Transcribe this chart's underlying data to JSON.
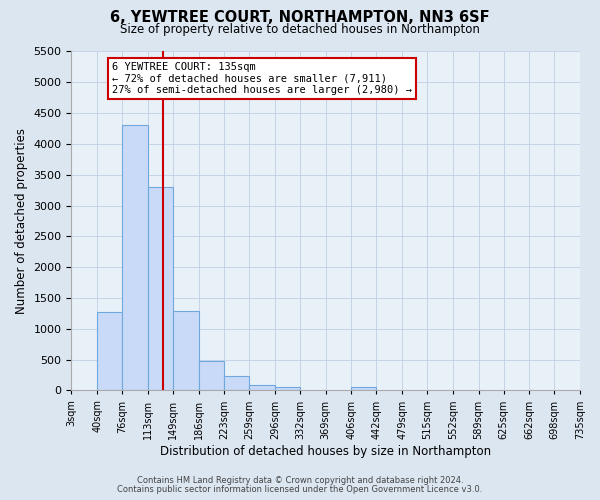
{
  "title": "6, YEWTREE COURT, NORTHAMPTON, NN3 6SF",
  "subtitle": "Size of property relative to detached houses in Northampton",
  "xlabel": "Distribution of detached houses by size in Northampton",
  "ylabel": "Number of detached properties",
  "bin_edges": [
    3,
    40,
    76,
    113,
    149,
    186,
    223,
    259,
    296,
    332,
    369,
    406,
    442,
    479,
    515,
    552,
    589,
    625,
    662,
    698,
    735
  ],
  "bar_values": [
    0,
    1270,
    4300,
    3300,
    1290,
    480,
    235,
    95,
    55,
    0,
    0,
    55,
    0,
    0,
    0,
    0,
    0,
    0,
    0,
    0
  ],
  "bar_color": "#c9daf8",
  "bar_edge_color": "#6fa8dc",
  "ylim": [
    0,
    5500
  ],
  "yticks": [
    0,
    500,
    1000,
    1500,
    2000,
    2500,
    3000,
    3500,
    4000,
    4500,
    5000,
    5500
  ],
  "vline_x": 135,
  "vline_color": "#cc0000",
  "annotation_title": "6 YEWTREE COURT: 135sqm",
  "annotation_line1": "← 72% of detached houses are smaller (7,911)",
  "annotation_line2": "27% of semi-detached houses are larger (2,980) →",
  "annotation_box_color": "#cc0000",
  "footer_line1": "Contains HM Land Registry data © Crown copyright and database right 2024.",
  "footer_line2": "Contains public sector information licensed under the Open Government Licence v3.0.",
  "bg_color": "#dce6f1",
  "plot_bg_color": "#e8f0f8",
  "grid_color": "#c0cfe8",
  "tick_labels": [
    "3sqm",
    "40sqm",
    "76sqm",
    "113sqm",
    "149sqm",
    "186sqm",
    "223sqm",
    "259sqm",
    "296sqm",
    "332sqm",
    "369sqm",
    "406sqm",
    "442sqm",
    "479sqm",
    "515sqm",
    "552sqm",
    "589sqm",
    "625sqm",
    "662sqm",
    "698sqm",
    "735sqm"
  ]
}
